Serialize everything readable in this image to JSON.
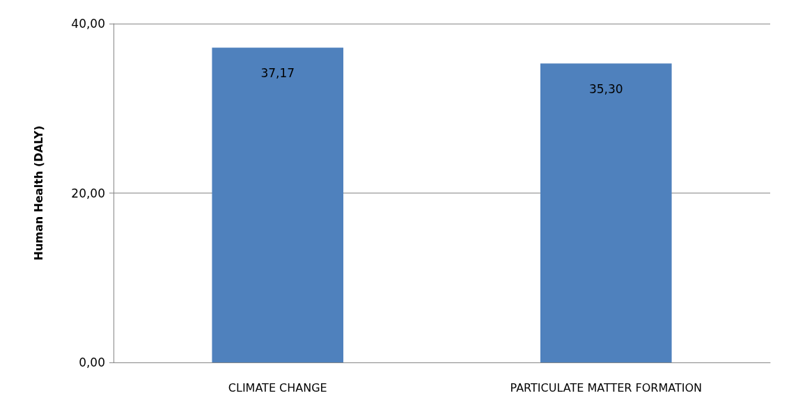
{
  "chart_data": {
    "type": "bar",
    "ylabel": "Human Health (DALY)",
    "categories": [
      "CLIMATE CHANGE",
      "PARTICULATE MATTER FORMATION"
    ],
    "values": [
      37.17,
      35.3
    ],
    "value_labels": [
      "37,17",
      "35,30"
    ],
    "color": "#4f81bd",
    "ylim": [
      0,
      40
    ],
    "yticks": [
      {
        "value": 0,
        "label": "0,00"
      },
      {
        "value": 20,
        "label": "20,00"
      },
      {
        "value": 40,
        "label": "40,00"
      }
    ],
    "grid": "y"
  }
}
